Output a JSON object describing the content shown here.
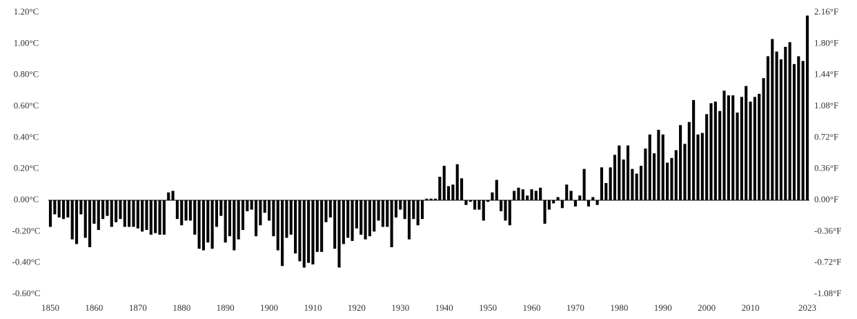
{
  "chart_data": {
    "type": "bar",
    "color": "#000000",
    "x": [
      1850,
      1851,
      1852,
      1853,
      1854,
      1855,
      1856,
      1857,
      1858,
      1859,
      1860,
      1861,
      1862,
      1863,
      1864,
      1865,
      1866,
      1867,
      1868,
      1869,
      1870,
      1871,
      1872,
      1873,
      1874,
      1875,
      1876,
      1877,
      1878,
      1879,
      1880,
      1881,
      1882,
      1883,
      1884,
      1885,
      1886,
      1887,
      1888,
      1889,
      1890,
      1891,
      1892,
      1893,
      1894,
      1895,
      1896,
      1897,
      1898,
      1899,
      1900,
      1901,
      1902,
      1903,
      1904,
      1905,
      1906,
      1907,
      1908,
      1909,
      1910,
      1911,
      1912,
      1913,
      1914,
      1915,
      1916,
      1917,
      1918,
      1919,
      1920,
      1921,
      1922,
      1923,
      1924,
      1925,
      1926,
      1927,
      1928,
      1929,
      1930,
      1931,
      1932,
      1933,
      1934,
      1935,
      1936,
      1937,
      1938,
      1939,
      1940,
      1941,
      1942,
      1943,
      1944,
      1945,
      1946,
      1947,
      1948,
      1949,
      1950,
      1951,
      1952,
      1953,
      1954,
      1955,
      1956,
      1957,
      1958,
      1959,
      1960,
      1961,
      1962,
      1963,
      1964,
      1965,
      1966,
      1967,
      1968,
      1969,
      1970,
      1971,
      1972,
      1973,
      1974,
      1975,
      1976,
      1977,
      1978,
      1979,
      1980,
      1981,
      1982,
      1983,
      1984,
      1985,
      1986,
      1987,
      1988,
      1989,
      1990,
      1991,
      1992,
      1993,
      1994,
      1995,
      1996,
      1997,
      1998,
      1999,
      2000,
      2001,
      2002,
      2003,
      2004,
      2005,
      2006,
      2007,
      2008,
      2009,
      2010,
      2011,
      2012,
      2013,
      2014,
      2015,
      2016,
      2017,
      2018,
      2019,
      2020,
      2021,
      2022,
      2023
    ],
    "values": [
      -0.17,
      -0.09,
      -0.11,
      -0.12,
      -0.11,
      -0.25,
      -0.28,
      -0.09,
      -0.24,
      -0.3,
      -0.15,
      -0.19,
      -0.12,
      -0.1,
      -0.17,
      -0.14,
      -0.12,
      -0.17,
      -0.17,
      -0.17,
      -0.18,
      -0.2,
      -0.19,
      -0.22,
      -0.21,
      -0.22,
      -0.22,
      0.05,
      0.06,
      -0.12,
      -0.16,
      -0.13,
      -0.13,
      -0.22,
      -0.31,
      -0.32,
      -0.27,
      -0.31,
      -0.17,
      -0.1,
      -0.27,
      -0.23,
      -0.32,
      -0.25,
      -0.19,
      -0.07,
      -0.06,
      -0.23,
      -0.16,
      -0.08,
      -0.13,
      -0.23,
      -0.32,
      -0.42,
      -0.24,
      -0.22,
      -0.34,
      -0.39,
      -0.43,
      -0.4,
      -0.41,
      -0.33,
      -0.33,
      -0.14,
      -0.11,
      -0.31,
      -0.43,
      -0.28,
      -0.24,
      -0.26,
      -0.18,
      -0.22,
      -0.25,
      -0.23,
      -0.2,
      -0.13,
      -0.17,
      -0.17,
      -0.3,
      -0.11,
      -0.06,
      -0.12,
      -0.25,
      -0.12,
      -0.16,
      -0.12,
      0.01,
      0.01,
      0.01,
      0.15,
      0.22,
      0.09,
      0.1,
      0.23,
      0.14,
      -0.03,
      -0.01,
      -0.06,
      -0.06,
      -0.13,
      -0.01,
      0.05,
      0.13,
      -0.07,
      -0.13,
      -0.16,
      0.06,
      0.08,
      0.07,
      0.03,
      0.07,
      0.06,
      0.08,
      -0.15,
      -0.06,
      -0.02,
      0.02,
      -0.05,
      0.1,
      0.06,
      -0.04,
      0.03,
      0.2,
      -0.04,
      0.02,
      -0.03,
      0.21,
      0.11,
      0.21,
      0.29,
      0.35,
      0.26,
      0.35,
      0.2,
      0.17,
      0.22,
      0.33,
      0.42,
      0.3,
      0.45,
      0.42,
      0.24,
      0.27,
      0.32,
      0.48,
      0.36,
      0.5,
      0.64,
      0.42,
      0.43,
      0.55,
      0.62,
      0.63,
      0.57,
      0.7,
      0.67,
      0.67,
      0.56,
      0.66,
      0.73,
      0.63,
      0.66,
      0.68,
      0.78,
      0.92,
      1.03,
      0.95,
      0.9,
      0.98,
      1.01,
      0.87,
      0.92,
      0.89,
      1.18
    ],
    "xlim": [
      1850,
      2023
    ],
    "xticks": [
      1850,
      1860,
      1870,
      1880,
      1890,
      1900,
      1910,
      1920,
      1930,
      1940,
      1950,
      1960,
      1970,
      1980,
      1990,
      2000,
      2010,
      2023
    ],
    "ylim": [
      -0.6,
      1.2
    ],
    "yticks": [
      {
        "value": -0.6,
        "label": "-0.60°C"
      },
      {
        "value": -0.4,
        "label": "-0.40°C"
      },
      {
        "value": -0.2,
        "label": "-0.20°C"
      },
      {
        "value": 0,
        "label": "0.00°C"
      },
      {
        "value": 0.2,
        "label": "0.20°C"
      },
      {
        "value": 0.4,
        "label": "0.40°C"
      },
      {
        "value": 0.6,
        "label": "0.60°C"
      },
      {
        "value": 0.8,
        "label": "0.80°C"
      },
      {
        "value": 1.0,
        "label": "1.00°C"
      },
      {
        "value": 1.2,
        "label": "1.20°C"
      }
    ],
    "y2lim": [
      -1.08,
      2.16
    ],
    "y2ticks": [
      {
        "value": -1.08,
        "label": "-1.08°F"
      },
      {
        "value": -0.72,
        "label": "-0.72°F"
      },
      {
        "value": -0.36,
        "label": "-0.36°F"
      },
      {
        "value": 0,
        "label": "0.00°F"
      },
      {
        "value": 0.36,
        "label": "0.36°F"
      },
      {
        "value": 0.72,
        "label": "0.72°F"
      },
      {
        "value": 1.08,
        "label": "1.08°F"
      },
      {
        "value": 1.44,
        "label": "1.44°F"
      },
      {
        "value": 1.8,
        "label": "1.80°F"
      },
      {
        "value": 2.16,
        "label": "2.16°F"
      }
    ]
  }
}
